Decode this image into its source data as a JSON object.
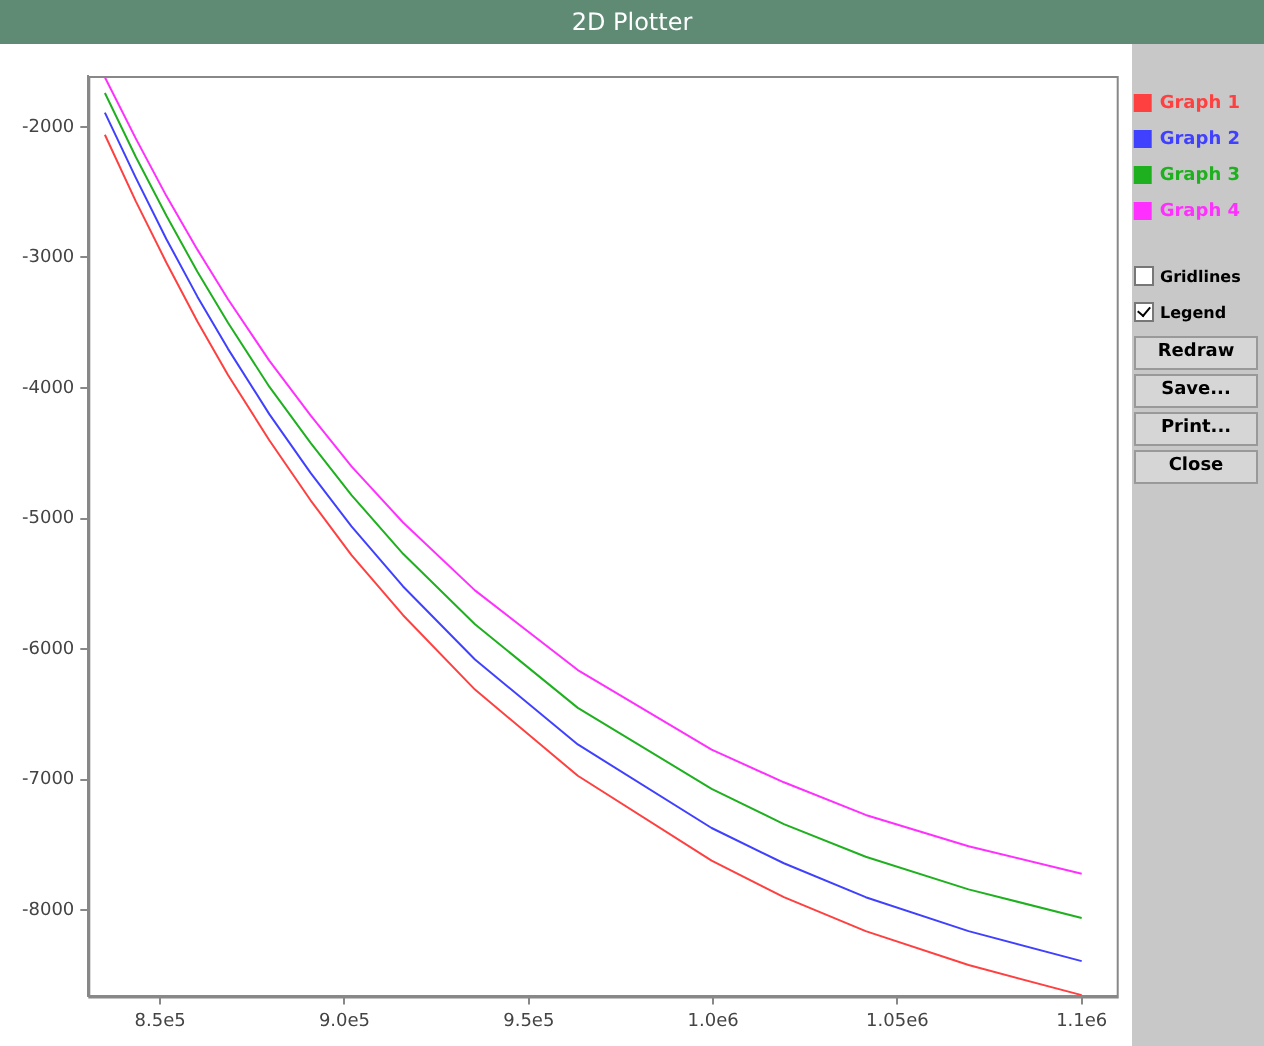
{
  "chart_data": {
    "type": "line",
    "title": "2D Plotter",
    "x": [
      835000,
      843400,
      851700,
      860100,
      868400,
      879600,
      890800,
      901900,
      915900,
      935400,
      963300,
      999600,
      1019200,
      1041400,
      1069300,
      1100000
    ],
    "series": [
      {
        "name": "Graph 1",
        "color": "#ff4040",
        "values": [
          -2060,
          -2570,
          -3040,
          -3490,
          -3900,
          -4400,
          -4860,
          -5280,
          -5740,
          -6310,
          -6970,
          -7620,
          -7900,
          -8160,
          -8420,
          -8650
        ]
      },
      {
        "name": "Graph 2",
        "color": "#4040ff",
        "values": [
          -1890,
          -2390,
          -2860,
          -3300,
          -3700,
          -4200,
          -4650,
          -5060,
          -5520,
          -6080,
          -6730,
          -7370,
          -7640,
          -7900,
          -8160,
          -8390
        ]
      },
      {
        "name": "Graph 3",
        "color": "#1fb01f",
        "values": [
          -1740,
          -2230,
          -2680,
          -3110,
          -3500,
          -3990,
          -4420,
          -4820,
          -5270,
          -5810,
          -6450,
          -7070,
          -7340,
          -7590,
          -7840,
          -8060
        ]
      },
      {
        "name": "Graph 4",
        "color": "#ff30ff",
        "values": [
          -1620,
          -2090,
          -2530,
          -2940,
          -3320,
          -3790,
          -4210,
          -4600,
          -5030,
          -5550,
          -6160,
          -6770,
          -7020,
          -7270,
          -7510,
          -7720
        ]
      }
    ],
    "xlim": [
      830500,
      1109500
    ],
    "xticks": [
      {
        "value": 850000,
        "label": "8.5e5"
      },
      {
        "value": 900000,
        "label": "9.0e5"
      },
      {
        "value": 950000,
        "label": "9.5e5"
      },
      {
        "value": 1000000,
        "label": "1.0e6"
      },
      {
        "value": 1050000,
        "label": "1.05e6"
      },
      {
        "value": 1100000,
        "label": "1.1e6"
      }
    ],
    "ylim": [
      -8660,
      -1610
    ],
    "yticks": [
      -8000,
      -7000,
      -6000,
      -5000,
      -4000,
      -3000,
      -2000
    ],
    "grid": false,
    "legend": "top right",
    "marker": "none",
    "line_style": "solid",
    "annotations": [
      "Gridlines",
      "Legend",
      "Redraw",
      "Save...",
      "Print...",
      "Close"
    ]
  }
}
